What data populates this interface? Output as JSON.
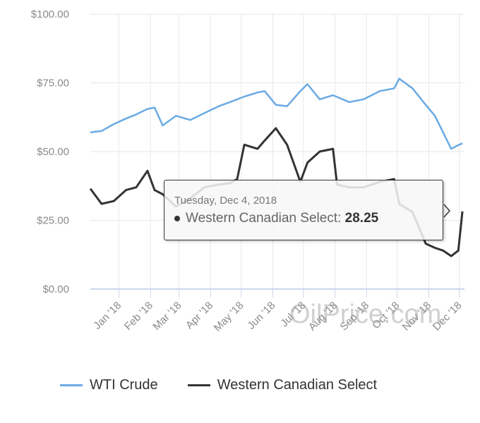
{
  "chart_data": {
    "type": "line",
    "title": "",
    "xlabel": "",
    "ylabel": "",
    "ylim": [
      0,
      100
    ],
    "yticks": [
      "$0.00",
      "$25.00",
      "$50.00",
      "$75.00",
      "$100.00"
    ],
    "ytick_values": [
      0,
      25,
      50,
      75,
      100
    ],
    "xticks": [
      "Jan '18",
      "Feb '18",
      "Mar '18",
      "Apr '18",
      "May '18",
      "Jun '18",
      "Jul '18",
      "Aug '18",
      "Sep '18",
      "Oct '18",
      "Nov '18",
      "Dec '18"
    ],
    "xtick_dates": [
      "2018-01-01",
      "2018-02-01",
      "2018-03-01",
      "2018-04-01",
      "2018-05-01",
      "2018-06-01",
      "2018-07-01",
      "2018-08-01",
      "2018-09-01",
      "2018-10-01",
      "2018-11-01",
      "2018-12-01"
    ],
    "xlim": [
      "2017-12-04",
      "2018-12-06"
    ],
    "grid": true,
    "legend_position": "bottom",
    "series": [
      {
        "name": "WTI Crude",
        "color": "#6aaae4",
        "x": [
          "2017-12-04",
          "2017-12-15",
          "2017-12-27",
          "2018-01-08",
          "2018-01-18",
          "2018-01-29",
          "2018-02-05",
          "2018-02-13",
          "2018-02-26",
          "2018-03-12",
          "2018-03-26",
          "2018-04-09",
          "2018-04-20",
          "2018-05-04",
          "2018-05-17",
          "2018-05-24",
          "2018-06-04",
          "2018-06-15",
          "2018-06-28",
          "2018-07-05",
          "2018-07-17",
          "2018-07-30",
          "2018-08-15",
          "2018-08-29",
          "2018-09-14",
          "2018-09-28",
          "2018-10-03",
          "2018-10-16",
          "2018-10-29",
          "2018-11-07",
          "2018-11-15",
          "2018-11-23",
          "2018-11-28",
          "2018-12-04"
        ],
        "values": [
          57,
          57.5,
          60,
          62,
          63.5,
          65.5,
          66,
          59.5,
          63,
          61.5,
          64,
          66.5,
          68,
          70,
          71.5,
          72,
          67,
          66.5,
          72,
          74.5,
          69,
          70.5,
          68,
          69,
          72,
          73,
          76.5,
          73,
          67,
          63,
          57,
          51,
          52,
          53
        ]
      },
      {
        "name": "Western Canadian Select",
        "color": "#333333",
        "x": [
          "2017-12-04",
          "2017-12-15",
          "2017-12-27",
          "2018-01-08",
          "2018-01-18",
          "2018-01-29",
          "2018-02-05",
          "2018-02-13",
          "2018-02-26",
          "2018-03-12",
          "2018-03-26",
          "2018-04-09",
          "2018-04-20",
          "2018-04-27",
          "2018-05-04",
          "2018-05-17",
          "2018-05-24",
          "2018-06-04",
          "2018-06-15",
          "2018-06-28",
          "2018-07-05",
          "2018-07-17",
          "2018-07-30",
          "2018-08-03",
          "2018-08-15",
          "2018-08-29",
          "2018-09-14",
          "2018-09-28",
          "2018-10-03",
          "2018-10-16",
          "2018-10-29",
          "2018-11-07",
          "2018-11-15",
          "2018-11-23",
          "2018-11-30",
          "2018-12-04"
        ],
        "values": [
          36.5,
          31,
          32,
          36,
          37,
          43,
          36,
          34.5,
          30,
          33,
          37,
          38,
          38.5,
          40,
          52.5,
          51,
          54,
          58.5,
          52.5,
          39,
          46,
          50,
          51,
          38,
          37,
          37,
          39,
          40,
          31,
          28,
          16.5,
          15,
          14,
          12,
          14,
          28.25
        ]
      }
    ]
  },
  "tooltip": {
    "date": "Tuesday, Dec 4, 2018",
    "series_label": "Western Canadian Select:",
    "value": "28.25"
  },
  "watermark": "OilPrice.com",
  "legend": [
    {
      "label": "WTI Crude",
      "color": "#6aaae4"
    },
    {
      "label": "Western Canadian Select",
      "color": "#333333"
    }
  ]
}
